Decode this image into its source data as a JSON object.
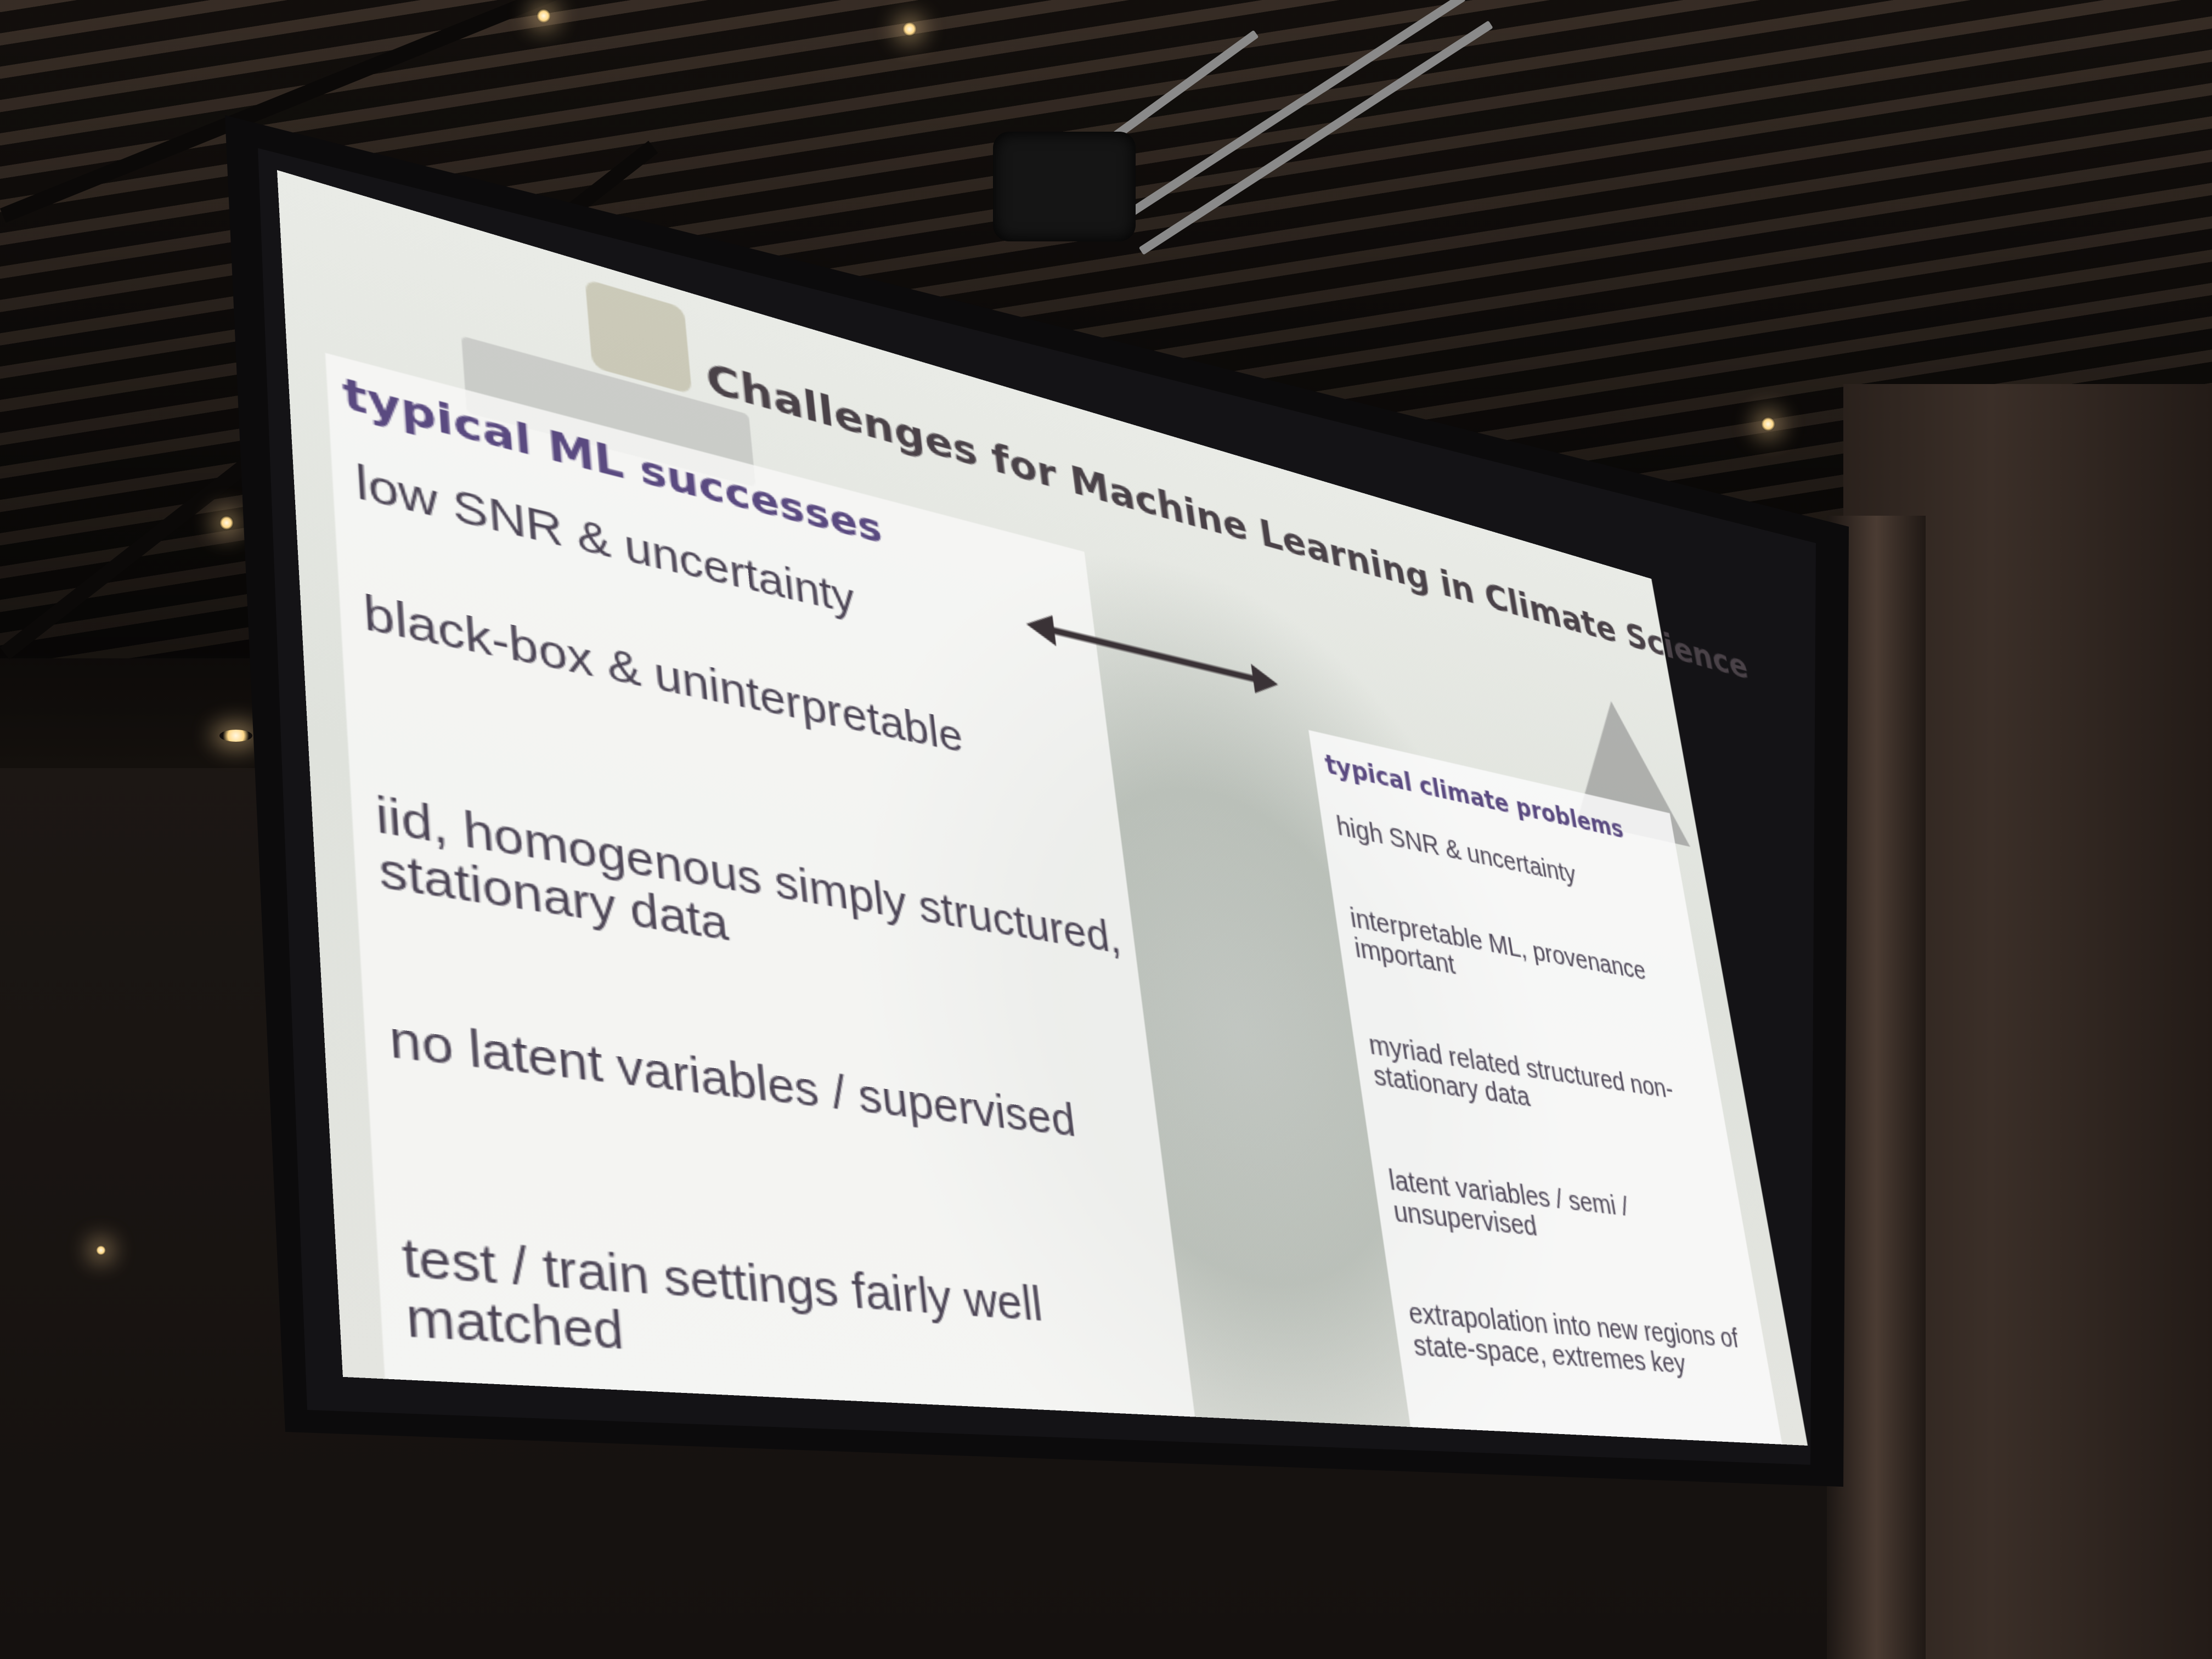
{
  "slide": {
    "title": "Challenges for Machine Learning in Climate Science",
    "left_column": {
      "heading": "typical ML successes",
      "items": [
        "low SNR & uncertainty",
        "black-box & uninterpretable",
        "iid, homogenous simply structured, stationary data",
        "no latent variables / supervised",
        "test / train settings fairly well matched"
      ]
    },
    "right_column": {
      "heading": "typical climate problems",
      "items": [
        "high SNR & uncertainty",
        "interpretable ML, provenance important",
        "myriad related structured non-stationary data",
        "latent variables / semi / unsupervised",
        "extrapolation into new regions of state-space, extremes key"
      ]
    },
    "connector_icon": "double-headed-arrow-icon"
  },
  "colors": {
    "heading_purple": "#5a4a80",
    "title_gray": "#4a4248",
    "body_text": "#4d4656"
  }
}
